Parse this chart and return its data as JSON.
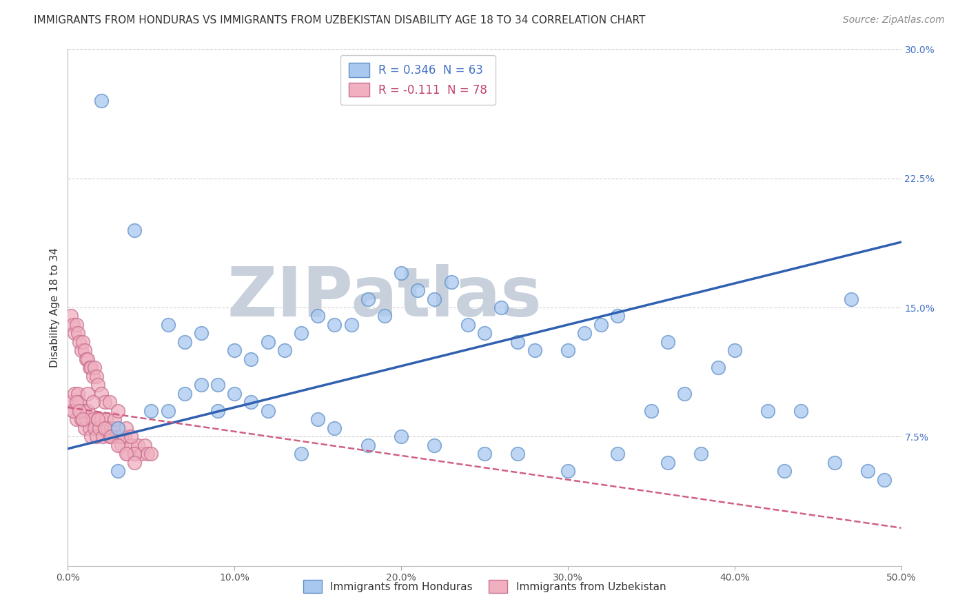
{
  "title": "IMMIGRANTS FROM HONDURAS VS IMMIGRANTS FROM UZBEKISTAN DISABILITY AGE 18 TO 34 CORRELATION CHART",
  "source": "Source: ZipAtlas.com",
  "ylabel": "Disability Age 18 to 34",
  "xlim": [
    0.0,
    0.5
  ],
  "ylim": [
    0.0,
    0.3
  ],
  "xticks": [
    0.0,
    0.1,
    0.2,
    0.3,
    0.4,
    0.5
  ],
  "xticklabels": [
    "0.0%",
    "10.0%",
    "20.0%",
    "30.0%",
    "40.0%",
    "50.0%"
  ],
  "yticks": [
    0.0,
    0.075,
    0.15,
    0.225,
    0.3
  ],
  "yticklabels": [
    "",
    "7.5%",
    "15.0%",
    "22.5%",
    "30.0%"
  ],
  "legend_label_1": "R = 0.346  N = 63",
  "legend_label_2": "R = -0.111  N = 78",
  "legend_r_color": "#4472c4",
  "legend_r2_color": "#c0446a",
  "honduras_color": "#a8c8f0",
  "honduras_edge": "#6090c8",
  "uzbekistan_color": "#f0b0c0",
  "uzbekistan_edge": "#c87090",
  "line_honduras_color": "#3060b0",
  "line_uzbekistan_color": "#d06080",
  "watermark": "ZIPatlas",
  "watermark_color": "#c8d0dc",
  "background_color": "#ffffff",
  "grid_color": "#cccccc",
  "title_fontsize": 11,
  "axis_fontsize": 11,
  "tick_fontsize": 10,
  "source_fontsize": 10,
  "honduras_x": [
    0.02,
    0.04,
    0.06,
    0.07,
    0.08,
    0.09,
    0.1,
    0.11,
    0.12,
    0.13,
    0.14,
    0.15,
    0.16,
    0.17,
    0.18,
    0.19,
    0.2,
    0.21,
    0.22,
    0.23,
    0.24,
    0.25,
    0.26,
    0.27,
    0.28,
    0.3,
    0.31,
    0.32,
    0.33,
    0.35,
    0.36,
    0.37,
    0.39,
    0.4,
    0.42,
    0.44,
    0.47,
    0.03,
    0.05,
    0.06,
    0.07,
    0.08,
    0.09,
    0.1,
    0.11,
    0.12,
    0.14,
    0.15,
    0.16,
    0.18,
    0.2,
    0.22,
    0.25,
    0.27,
    0.3,
    0.33,
    0.36,
    0.38,
    0.43,
    0.46,
    0.48,
    0.49,
    0.03
  ],
  "honduras_y": [
    0.27,
    0.195,
    0.14,
    0.13,
    0.135,
    0.105,
    0.125,
    0.12,
    0.13,
    0.125,
    0.135,
    0.145,
    0.14,
    0.14,
    0.155,
    0.145,
    0.17,
    0.16,
    0.155,
    0.165,
    0.14,
    0.135,
    0.15,
    0.13,
    0.125,
    0.125,
    0.135,
    0.14,
    0.145,
    0.09,
    0.13,
    0.1,
    0.115,
    0.125,
    0.09,
    0.09,
    0.155,
    0.08,
    0.09,
    0.09,
    0.1,
    0.105,
    0.09,
    0.1,
    0.095,
    0.09,
    0.065,
    0.085,
    0.08,
    0.07,
    0.075,
    0.07,
    0.065,
    0.065,
    0.055,
    0.065,
    0.06,
    0.065,
    0.055,
    0.06,
    0.055,
    0.05,
    0.055
  ],
  "uzbekistan_x": [
    0.002,
    0.003,
    0.004,
    0.005,
    0.006,
    0.007,
    0.008,
    0.009,
    0.01,
    0.011,
    0.012,
    0.013,
    0.014,
    0.015,
    0.016,
    0.017,
    0.018,
    0.019,
    0.02,
    0.021,
    0.022,
    0.023,
    0.024,
    0.025,
    0.026,
    0.027,
    0.028,
    0.029,
    0.03,
    0.031,
    0.032,
    0.034,
    0.036,
    0.038,
    0.04,
    0.042,
    0.044,
    0.046,
    0.048,
    0.05,
    0.002,
    0.003,
    0.004,
    0.005,
    0.006,
    0.007,
    0.008,
    0.009,
    0.01,
    0.011,
    0.012,
    0.013,
    0.014,
    0.015,
    0.016,
    0.017,
    0.018,
    0.02,
    0.022,
    0.025,
    0.028,
    0.03,
    0.032,
    0.035,
    0.038,
    0.04,
    0.003,
    0.005,
    0.007,
    0.009,
    0.012,
    0.015,
    0.018,
    0.022,
    0.026,
    0.03,
    0.035,
    0.04
  ],
  "uzbekistan_y": [
    0.095,
    0.09,
    0.1,
    0.085,
    0.1,
    0.095,
    0.085,
    0.09,
    0.08,
    0.085,
    0.09,
    0.08,
    0.075,
    0.085,
    0.08,
    0.075,
    0.085,
    0.08,
    0.085,
    0.075,
    0.08,
    0.085,
    0.08,
    0.075,
    0.08,
    0.075,
    0.08,
    0.075,
    0.08,
    0.075,
    0.07,
    0.075,
    0.065,
    0.07,
    0.065,
    0.07,
    0.065,
    0.07,
    0.065,
    0.065,
    0.145,
    0.14,
    0.135,
    0.14,
    0.135,
    0.13,
    0.125,
    0.13,
    0.125,
    0.12,
    0.12,
    0.115,
    0.115,
    0.11,
    0.115,
    0.11,
    0.105,
    0.1,
    0.095,
    0.095,
    0.085,
    0.09,
    0.075,
    0.08,
    0.075,
    0.065,
    0.09,
    0.095,
    0.09,
    0.085,
    0.1,
    0.095,
    0.085,
    0.08,
    0.075,
    0.07,
    0.065,
    0.06
  ]
}
